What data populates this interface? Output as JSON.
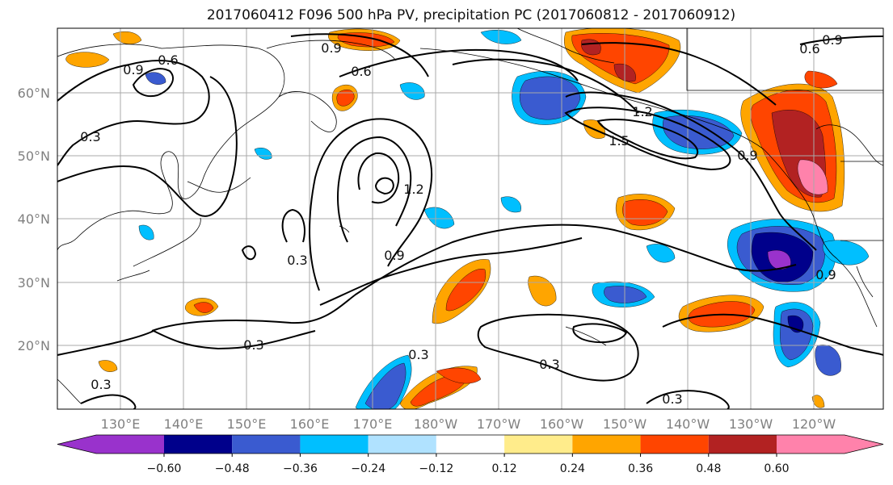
{
  "title": "2017060412 F096 500 hPa PV, precipitation PC (2017060812 - 2017060912)",
  "map": {
    "lon_labels": [
      "130°E",
      "140°E",
      "150°E",
      "160°E",
      "170°E",
      "180°W",
      "170°W",
      "160°W",
      "150°W",
      "140°W",
      "130°W",
      "120°W"
    ],
    "lat_labels": [
      "60°N",
      "50°N",
      "40°N",
      "30°N",
      "20°N"
    ]
  },
  "contour_labels": [
    {
      "text": "0.9"
    },
    {
      "text": "0.6"
    },
    {
      "text": "0.9"
    },
    {
      "text": "0.6"
    },
    {
      "text": "0.9"
    },
    {
      "text": "0.6"
    },
    {
      "text": "1.2"
    },
    {
      "text": "1.5"
    },
    {
      "text": "0.9"
    },
    {
      "text": "1.2"
    },
    {
      "text": "0.9"
    },
    {
      "text": "0.3"
    },
    {
      "text": "0.9"
    },
    {
      "text": "0.3"
    },
    {
      "text": "0.3"
    },
    {
      "text": "0.3"
    },
    {
      "text": "0.3"
    },
    {
      "text": "0.3"
    },
    {
      "text": "0.3"
    }
  ],
  "colorbar": {
    "colors": [
      "#9932cc",
      "#00008b",
      "#3a5bd0",
      "#00bfff",
      "#b0e2ff",
      "#ffffff",
      "#ffec8b",
      "#ffa500",
      "#ff4500",
      "#b22222",
      "#ff82ab"
    ],
    "tick_labels": [
      "−0.60",
      "−0.48",
      "−0.36",
      "−0.24",
      "−0.12",
      "0.12",
      "0.24",
      "0.36",
      "0.48",
      "0.60"
    ]
  }
}
